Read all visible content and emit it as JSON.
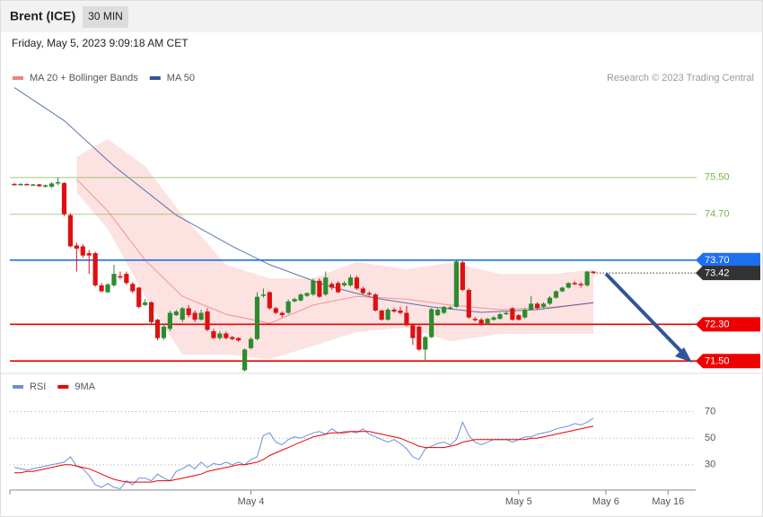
{
  "header": {
    "title": "Brent (ICE)",
    "interval": "30 MIN",
    "timestamp": "Friday, May 5, 2023 9:09:18 AM CET",
    "credit": "Research © 2023 Trading Central"
  },
  "chart_data": [
    {
      "type": "candlestick",
      "up_color": "#2e8b2e",
      "down_color": "#dd1111",
      "ylim": [
        71.25,
        78.0
      ],
      "open": [
        75.36,
        75.35,
        75.36,
        75.34,
        75.35,
        75.31,
        75.3,
        75.37,
        75.38,
        74.68,
        74.02,
        74.0,
        73.85,
        73.85,
        73.15,
        73.0,
        73.15,
        73.35,
        73.4,
        73.18,
        73.1,
        72.72,
        72.78,
        72.4,
        72.0,
        72.2,
        72.5,
        72.4,
        72.65,
        72.55,
        72.4,
        72.58,
        72.15,
        72.0,
        72.1,
        72.02,
        72.0,
        71.3,
        71.78,
        71.98,
        72.92,
        73.0,
        72.65,
        72.55,
        72.55,
        72.8,
        72.82,
        72.92,
        72.95,
        73.25,
        72.95,
        73.18,
        73.2,
        73.15,
        73.15,
        73.32,
        73.08,
        72.98,
        72.95,
        72.6,
        72.4,
        72.62,
        72.6,
        72.55,
        72.28,
        72.25,
        71.75,
        72.02,
        72.5,
        72.55,
        72.65,
        72.68,
        73.65,
        73.05,
        72.42,
        72.4,
        72.32,
        72.4,
        72.42,
        72.52,
        72.65,
        72.5,
        72.45,
        72.62,
        72.75,
        72.68,
        72.75,
        72.88,
        73.02,
        73.1,
        73.2,
        73.18,
        73.15,
        73.45
      ],
      "high": [
        75.38,
        75.38,
        75.37,
        75.36,
        75.36,
        75.35,
        75.4,
        75.5,
        75.4,
        74.72,
        74.08,
        74.05,
        73.92,
        73.88,
        73.2,
        73.2,
        73.6,
        73.45,
        73.45,
        73.22,
        73.12,
        72.85,
        72.8,
        72.42,
        72.3,
        72.6,
        72.62,
        72.68,
        72.72,
        72.6,
        72.62,
        72.65,
        72.2,
        72.15,
        72.14,
        72.05,
        72.02,
        71.78,
        72.02,
        73.0,
        73.08,
        73.02,
        72.68,
        72.58,
        72.84,
        72.88,
        72.98,
        73.0,
        73.3,
        73.3,
        73.45,
        73.22,
        73.24,
        73.24,
        73.38,
        73.36,
        73.12,
        73.02,
        72.98,
        72.62,
        72.66,
        72.66,
        72.68,
        72.7,
        72.32,
        72.28,
        72.05,
        72.66,
        72.65,
        72.7,
        72.7,
        73.72,
        73.68,
        73.08,
        72.46,
        72.44,
        72.44,
        72.48,
        72.55,
        72.58,
        72.68,
        72.52,
        72.65,
        72.92,
        72.78,
        72.78,
        72.92,
        73.04,
        73.12,
        73.22,
        73.24,
        73.22,
        73.46,
        73.46
      ],
      "low": [
        75.33,
        75.33,
        75.33,
        75.32,
        75.3,
        75.28,
        75.27,
        75.33,
        74.66,
        73.98,
        73.45,
        73.75,
        73.4,
        73.12,
        73.0,
        72.98,
        73.12,
        73.28,
        73.16,
        72.98,
        72.65,
        72.7,
        72.3,
        71.95,
        71.96,
        72.15,
        72.48,
        72.35,
        72.45,
        72.35,
        72.38,
        72.15,
        71.98,
        71.96,
        71.97,
        71.95,
        71.92,
        71.27,
        71.75,
        71.95,
        72.88,
        72.62,
        72.52,
        72.45,
        72.52,
        72.78,
        72.8,
        72.9,
        72.92,
        72.88,
        72.92,
        73.05,
        72.98,
        73.12,
        73.12,
        73.05,
        72.95,
        72.92,
        72.58,
        72.38,
        72.38,
        72.55,
        72.52,
        72.26,
        71.85,
        71.72,
        71.5,
        72.0,
        72.48,
        72.52,
        72.62,
        72.66,
        73.02,
        72.42,
        72.36,
        72.28,
        72.3,
        72.38,
        72.4,
        72.5,
        72.38,
        72.38,
        72.42,
        72.6,
        72.62,
        72.65,
        72.72,
        72.86,
        73.0,
        73.08,
        73.16,
        73.1,
        73.12,
        73.4
      ],
      "close": [
        75.35,
        75.36,
        75.34,
        75.35,
        75.31,
        75.33,
        75.37,
        75.4,
        74.7,
        74.0,
        73.95,
        73.8,
        73.8,
        73.15,
        73.02,
        73.17,
        73.4,
        73.32,
        73.2,
        73.02,
        72.68,
        72.78,
        72.35,
        72.0,
        72.25,
        72.55,
        72.58,
        72.65,
        72.5,
        72.4,
        72.55,
        72.18,
        72.0,
        72.1,
        72.0,
        71.98,
        71.95,
        71.75,
        71.98,
        72.9,
        72.95,
        72.65,
        72.55,
        72.5,
        72.8,
        72.85,
        72.95,
        72.98,
        73.25,
        72.9,
        73.32,
        73.1,
        73.0,
        73.2,
        73.32,
        73.08,
        72.98,
        72.95,
        72.6,
        72.4,
        72.62,
        72.58,
        72.55,
        72.28,
        72.0,
        71.75,
        72.02,
        72.63,
        72.62,
        72.68,
        72.67,
        73.67,
        73.05,
        72.45,
        72.4,
        72.32,
        72.42,
        72.45,
        72.52,
        72.55,
        72.4,
        72.4,
        72.62,
        72.75,
        72.65,
        72.75,
        72.88,
        73.02,
        73.1,
        73.2,
        73.18,
        73.15,
        73.45,
        73.42
      ],
      "overlays": [
        {
          "name": "MA 20 + Bollinger Bands",
          "color": "#f08080",
          "band_color": "#fde2e2",
          "x": [
            10,
            15,
            21,
            27,
            34,
            41,
            48,
            55,
            63,
            70,
            78,
            87,
            93
          ],
          "values": [
            75.46,
            74.77,
            73.7,
            72.91,
            72.52,
            72.32,
            72.72,
            72.91,
            72.85,
            72.72,
            72.62,
            72.68,
            72.77
          ],
          "upper": [
            75.95,
            76.34,
            75.75,
            74.68,
            73.6,
            73.3,
            73.3,
            73.66,
            73.5,
            73.64,
            73.4,
            73.4,
            73.5
          ],
          "lower": [
            75.17,
            74.38,
            72.91,
            71.64,
            71.64,
            71.54,
            71.83,
            72.13,
            72.23,
            71.93,
            72.09,
            72.09,
            72.09
          ]
        },
        {
          "name": "MA 50",
          "color": "#2f5597",
          "x": [
            0,
            8,
            16,
            26,
            35,
            41,
            50,
            58,
            67,
            75,
            84,
            93
          ],
          "values": [
            77.46,
            76.74,
            75.75,
            74.68,
            74.0,
            73.6,
            73.15,
            72.87,
            72.68,
            72.56,
            72.62,
            72.77
          ]
        }
      ],
      "levels": [
        {
          "value": 75.5,
          "label": "75.50",
          "color": "#7cb342",
          "boxed": false,
          "dotted": false
        },
        {
          "value": 74.7,
          "label": "74.70",
          "color": "#7cb342",
          "boxed": false,
          "dotted": false
        },
        {
          "value": 73.7,
          "label": "73.70",
          "color": "#1e6ef0",
          "boxed": true,
          "dotted": false
        },
        {
          "value": 73.42,
          "label": "73.42",
          "color": "#333333",
          "boxed": true,
          "dotted": true
        },
        {
          "value": 72.3,
          "label": "72.30",
          "color": "#ee0000",
          "boxed": true,
          "dotted": false
        },
        {
          "value": 71.5,
          "label": "71.50",
          "color": "#ee0000",
          "boxed": true,
          "dotted": false
        }
      ]
    },
    {
      "type": "line",
      "categories": [
        null,
        null,
        null,
        null,
        null,
        null,
        null,
        null,
        null,
        null,
        null,
        null,
        null,
        null,
        null,
        null,
        null,
        null,
        null,
        null,
        null,
        null,
        null,
        null,
        null,
        null,
        null,
        null,
        null,
        null,
        null,
        null,
        null,
        null,
        null,
        null,
        null,
        null,
        "May 4",
        null,
        null,
        null,
        null,
        null,
        null,
        null,
        null,
        null,
        null,
        null,
        null,
        null,
        null,
        null,
        null,
        null,
        null,
        null,
        null,
        null,
        null,
        null,
        null,
        null,
        null,
        null,
        null,
        null,
        null,
        null,
        null,
        null,
        null,
        null,
        null,
        null,
        null,
        null,
        null,
        null,
        null,
        "May 5",
        null,
        null,
        null,
        null,
        null,
        null,
        null,
        null,
        null,
        null,
        null,
        null,
        null,
        "May 6",
        null,
        null,
        null,
        null,
        null,
        null,
        null,
        null,
        null,
        "May 16",
        null,
        null,
        null,
        null
      ],
      "ylim": [
        11,
        96
      ],
      "yticks": [
        70,
        50,
        30
      ],
      "grid": true,
      "series": [
        {
          "name": "RSI",
          "color": "#6a8fd8",
          "values": [
            28,
            27,
            26,
            27,
            28,
            29,
            30,
            31,
            32,
            36,
            29,
            27,
            22,
            15,
            13,
            16,
            13,
            12,
            18,
            15,
            20,
            20,
            18,
            23,
            20,
            18,
            25,
            27,
            30,
            27,
            32,
            28,
            31,
            30,
            32,
            30,
            32,
            30,
            34,
            36,
            52,
            54,
            47,
            45,
            49,
            51,
            50,
            52,
            54,
            55,
            53,
            57,
            54,
            55,
            55,
            54,
            57,
            53,
            51,
            49,
            47,
            49,
            46,
            42,
            36,
            34,
            42,
            44,
            46,
            47,
            45,
            49,
            62,
            52,
            47,
            45,
            47,
            49,
            49,
            49,
            47,
            49,
            51,
            51,
            53,
            54,
            55,
            57,
            58,
            59,
            61,
            60,
            62,
            65,
            null,
            null,
            null,
            null,
            null,
            null,
            null,
            null,
            null,
            null,
            null,
            null,
            null,
            null,
            null,
            null
          ]
        },
        {
          "name": "9MA",
          "color": "#ee0000",
          "values": [
            24,
            24,
            25,
            25,
            26,
            27,
            28,
            29,
            30,
            30,
            29,
            28,
            27,
            25,
            23,
            21,
            19,
            18,
            17,
            17,
            17,
            17,
            17,
            18,
            18,
            18,
            19,
            20,
            21,
            22,
            23,
            25,
            26,
            27,
            28,
            29,
            30,
            30,
            31,
            32,
            34,
            37,
            39,
            41,
            43,
            45,
            47,
            49,
            51,
            52,
            53,
            54,
            54,
            54,
            55,
            55,
            55,
            55,
            54,
            53,
            52,
            51,
            50,
            48,
            46,
            44,
            43,
            43,
            43,
            43,
            44,
            45,
            47,
            48,
            49,
            49,
            49,
            49,
            49,
            49,
            49,
            49,
            49,
            50,
            50,
            51,
            52,
            53,
            54,
            55,
            56,
            57,
            58,
            59,
            null,
            null,
            null,
            null,
            null,
            null,
            null,
            null,
            null,
            null,
            null,
            null,
            null,
            null,
            null,
            null
          ]
        }
      ]
    }
  ]
}
